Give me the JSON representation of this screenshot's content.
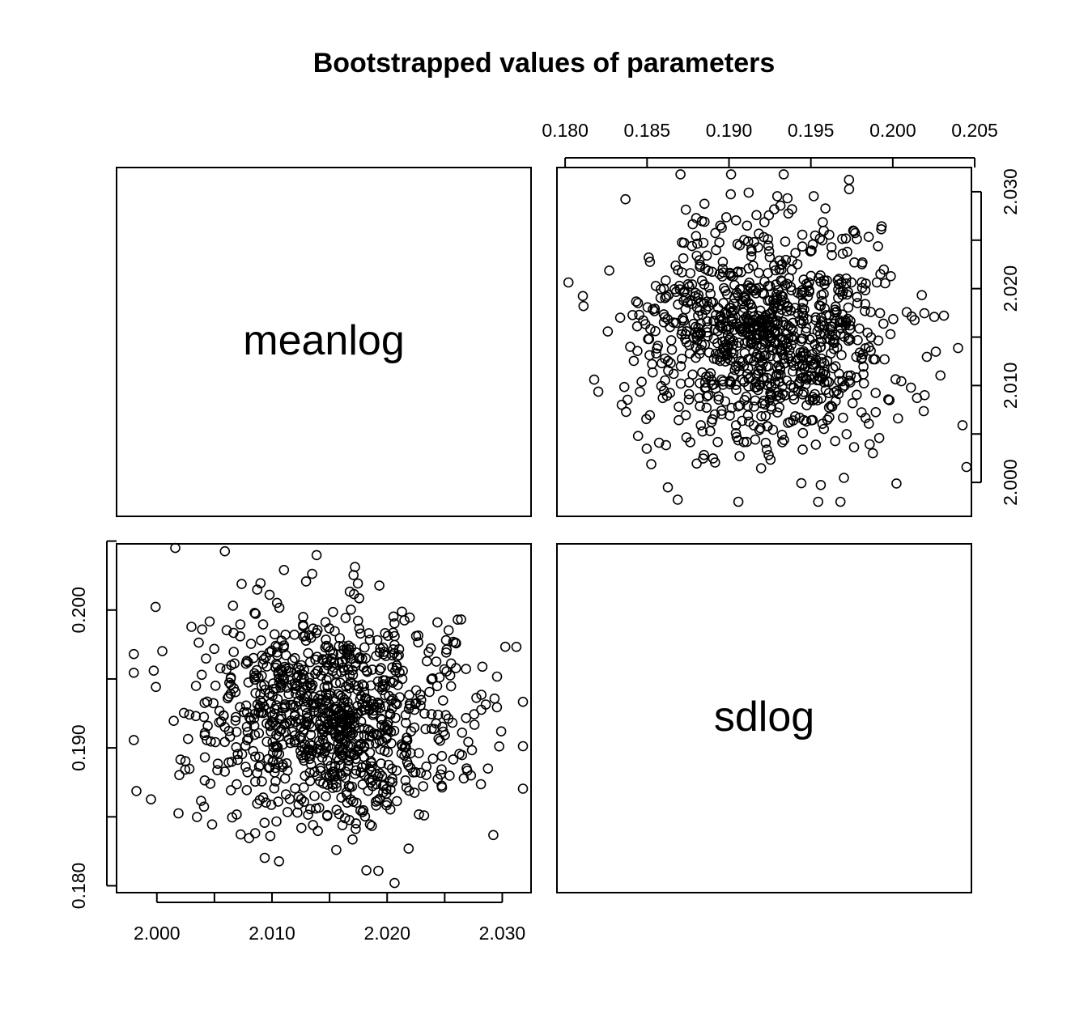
{
  "chart_data": {
    "type": "scatter",
    "title": "Bootstrapped values of parameters",
    "variables": [
      "meanlog",
      "sdlog"
    ],
    "layout": "2x2 pairs matrix",
    "meanlog_axis": {
      "range": [
        1.9965,
        2.0325
      ],
      "ticks": [
        "2.000",
        "2.010",
        "2.020",
        "2.030"
      ]
    },
    "sdlog_axis": {
      "range": [
        0.1795,
        0.2048
      ],
      "ticks": [
        "0.180",
        "0.185",
        "0.190",
        "0.195",
        "0.200",
        "0.205"
      ]
    },
    "left_axis_ticks": [
      "0.180",
      "0.190",
      "0.200"
    ],
    "right_axis_ticks": [
      "2.000",
      "2.010",
      "2.020",
      "2.030"
    ],
    "panels": [
      {
        "row": 1,
        "col": 1,
        "kind": "label",
        "text": "meanlog"
      },
      {
        "row": 1,
        "col": 2,
        "kind": "scatter",
        "x": "sdlog",
        "y": "meanlog"
      },
      {
        "row": 2,
        "col": 1,
        "kind": "scatter",
        "x": "meanlog",
        "y": "sdlog"
      },
      {
        "row": 2,
        "col": 2,
        "kind": "label",
        "text": "sdlog"
      }
    ],
    "n_points": 1000,
    "point_distribution": {
      "meanlog": {
        "center": 2.0152,
        "sd": 0.0058
      },
      "sdlog": {
        "center": 0.1922,
        "sd": 0.0038
      },
      "correlation": 0,
      "marker": "open-circle"
    },
    "grid": false,
    "legend": "none",
    "colors": {
      "ink": "#000000",
      "background": "#ffffff"
    }
  }
}
